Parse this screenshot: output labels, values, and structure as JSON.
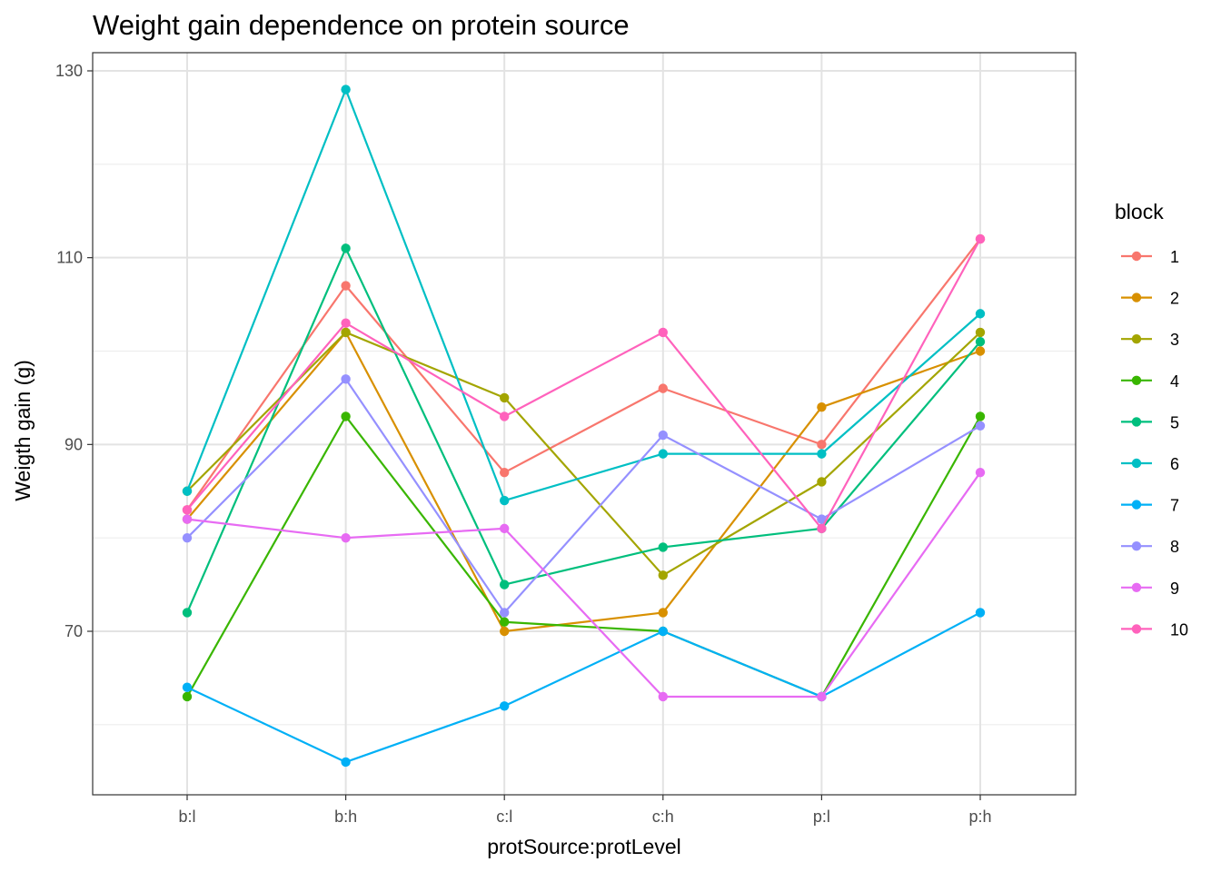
{
  "chart_data": {
    "type": "line",
    "title": "Weight gain dependence on protein source",
    "xlabel": "protSource:protLevel",
    "ylabel": "Weigth gain (g)",
    "categories": [
      "b:l",
      "b:h",
      "c:l",
      "c:h",
      "p:l",
      "p:h"
    ],
    "ylim": [
      52,
      130
    ],
    "yticks": [
      70,
      90,
      110,
      130
    ],
    "grid": true,
    "legend": {
      "title": "block",
      "placement": "right"
    },
    "series": [
      {
        "name": "1",
        "color": "#F8766D",
        "values": [
          83,
          107,
          87,
          96,
          90,
          112
        ]
      },
      {
        "name": "2",
        "color": "#D89000",
        "values": [
          82,
          102,
          70,
          72,
          94,
          100
        ]
      },
      {
        "name": "3",
        "color": "#A3A500",
        "values": [
          85,
          102,
          95,
          76,
          86,
          102
        ]
      },
      {
        "name": "4",
        "color": "#39B600",
        "values": [
          63,
          93,
          71,
          70,
          63,
          93
        ]
      },
      {
        "name": "5",
        "color": "#00BF7D",
        "values": [
          72,
          111,
          75,
          79,
          81,
          101
        ]
      },
      {
        "name": "6",
        "color": "#00BFC4",
        "values": [
          85,
          128,
          84,
          89,
          89,
          104
        ]
      },
      {
        "name": "7",
        "color": "#00B0F6",
        "values": [
          64,
          56,
          62,
          70,
          63,
          72
        ]
      },
      {
        "name": "8",
        "color": "#9590FF",
        "values": [
          80,
          97,
          72,
          91,
          82,
          92
        ]
      },
      {
        "name": "9",
        "color": "#E76BF3",
        "values": [
          82,
          80,
          81,
          63,
          63,
          87
        ]
      },
      {
        "name": "10",
        "color": "#FF62BC",
        "values": [
          83,
          103,
          93,
          102,
          81,
          112
        ]
      }
    ]
  }
}
